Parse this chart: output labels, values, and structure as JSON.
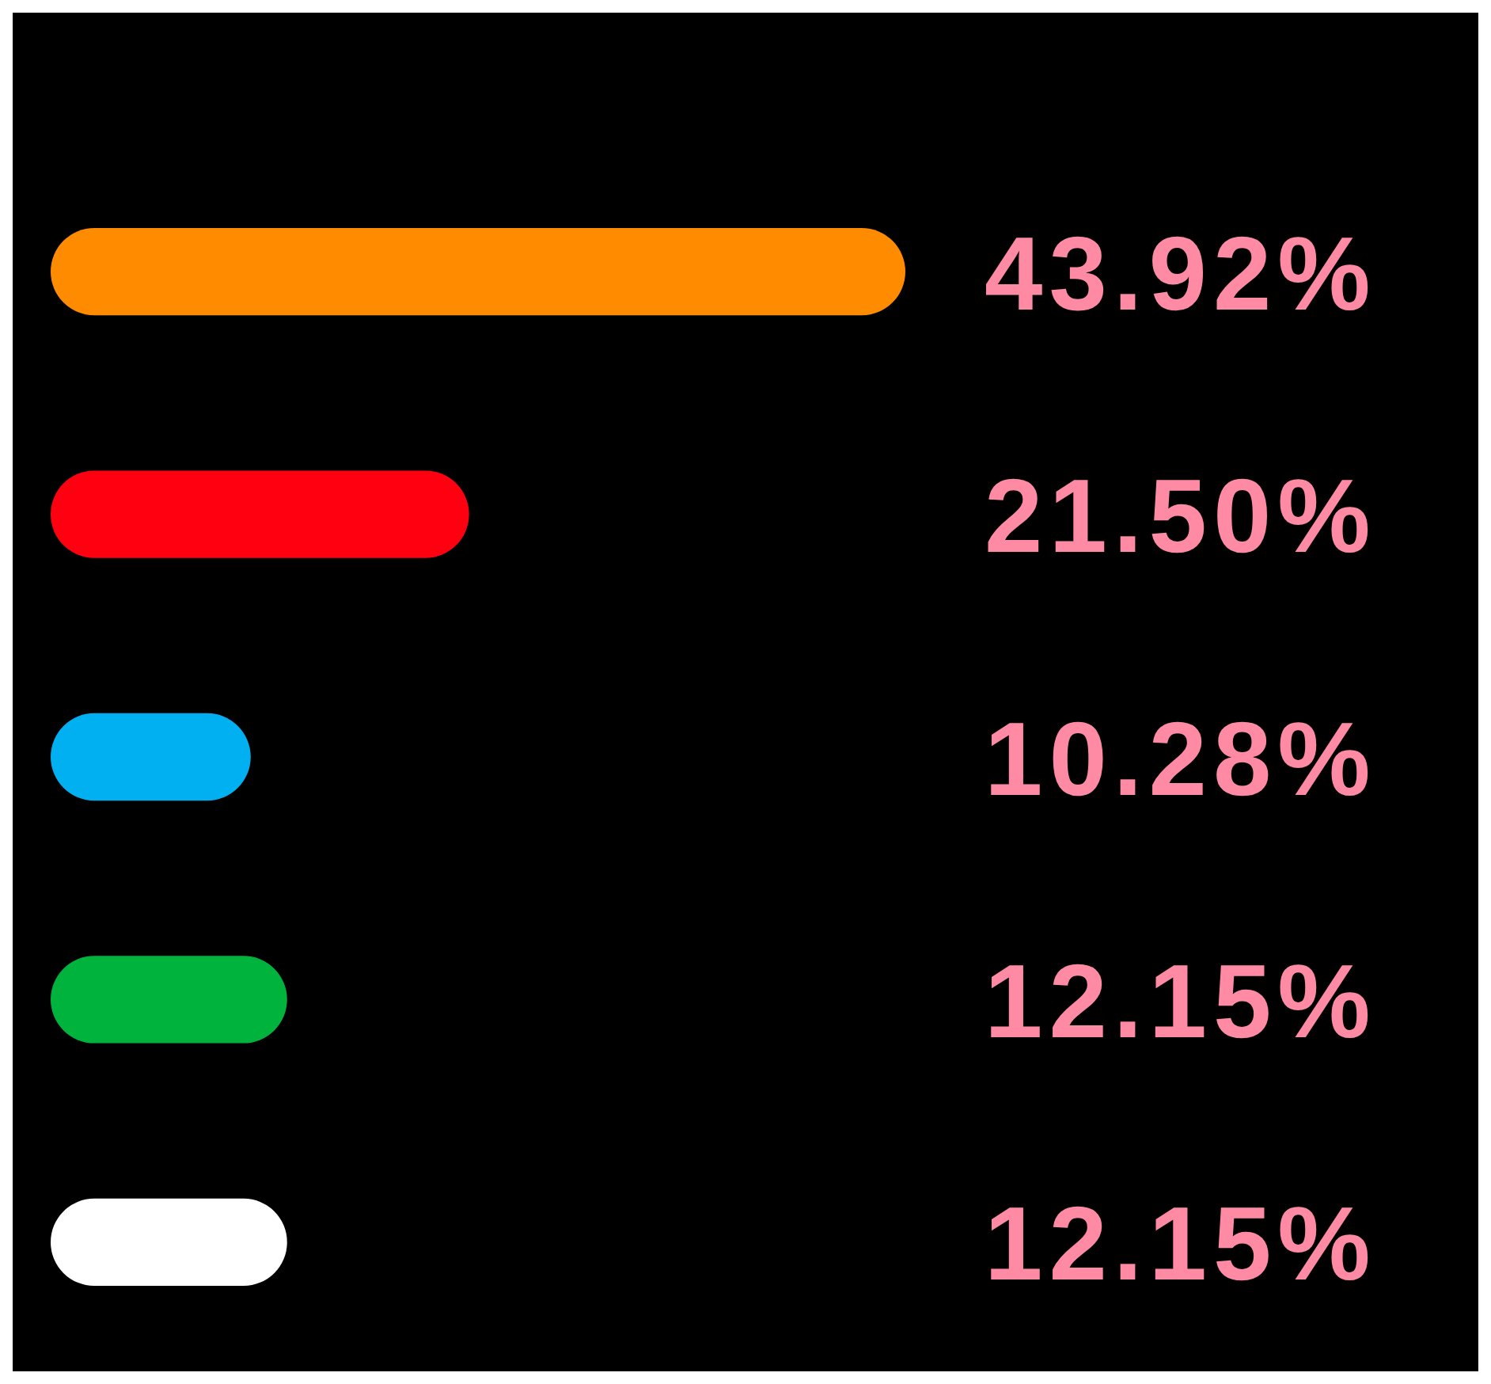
{
  "chart_data": {
    "type": "bar",
    "orientation": "horizontal",
    "categories": [
      null,
      null,
      null,
      null,
      null
    ],
    "values": [
      43.92,
      21.5,
      10.28,
      12.15,
      12.15
    ],
    "colors": [
      "#ff8c00",
      "#ff0010",
      "#00b0f0",
      "#00b33c",
      "#ffffff"
    ],
    "value_labels": [
      "43.92%",
      "21.50%",
      "10.28%",
      "12.15%",
      "12.15%"
    ]
  }
}
